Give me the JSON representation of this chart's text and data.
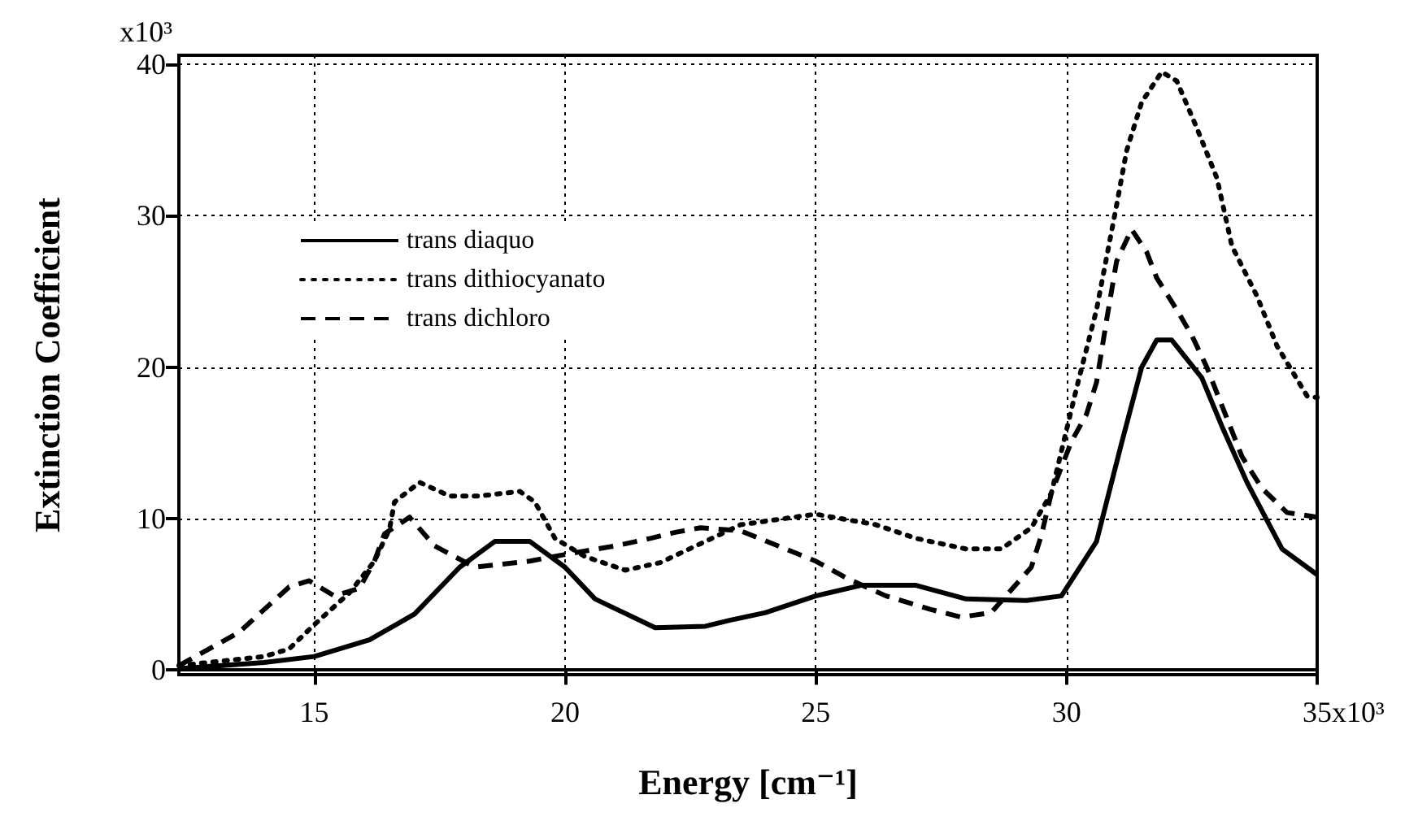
{
  "chart_data": {
    "type": "line",
    "xlabel": "Energy [cm⁻¹]",
    "ylabel": "Extinction Coefficient",
    "xlim": [
      12.3,
      35
    ],
    "ylim": [
      -0.3,
      40.6
    ],
    "xticks": [
      15,
      20,
      25,
      30,
      35
    ],
    "yticks": [
      0,
      10,
      20,
      30,
      40
    ],
    "annotations": [
      "x10³",
      "x10³"
    ],
    "grid": true,
    "legend": "top left",
    "marker": "none",
    "series": [
      {
        "name": "trans diaquo",
        "color": "#000000",
        "line_style": "solid",
        "x": [
          12.3,
          14,
          15,
          16.1,
          17,
          17.9,
          18.6,
          19.3,
          20,
          20.6,
          21.8,
          22.8,
          23.3,
          24,
          25,
          25.9,
          27,
          28,
          29.2,
          29.9,
          30.6,
          31.1,
          31.5,
          31.8,
          32.1,
          32.7,
          33.1,
          33.6,
          34.3,
          35
        ],
        "values": [
          0.1,
          0.5,
          0.9,
          2.0,
          3.7,
          6.8,
          8.5,
          8.5,
          6.8,
          4.7,
          2.8,
          2.9,
          3.3,
          3.8,
          4.9,
          5.6,
          5.6,
          4.7,
          4.6,
          4.9,
          8.5,
          15,
          20,
          21.8,
          21.8,
          19.3,
          16.1,
          12.4,
          8,
          6.3
        ]
      },
      {
        "name": "trans dithiocyanato",
        "color": "#000000",
        "line_style": "dotted",
        "x": [
          12.3,
          14,
          14.5,
          15,
          15.7,
          16.2,
          16.5,
          16.6,
          17.1,
          17.7,
          18.3,
          19.1,
          19.4,
          19.8,
          20.4,
          21.2,
          21.9,
          22.8,
          23.5,
          25,
          26.2,
          27,
          28,
          28.7,
          29.3,
          29.7,
          30.2,
          30.6,
          31,
          31.2,
          31.5,
          31.9,
          32.2,
          32.6,
          33,
          33.3,
          33.8,
          34.2,
          34.8,
          35
        ],
        "values": [
          0.3,
          0.9,
          1.4,
          3.0,
          5.1,
          7.2,
          9.3,
          11.1,
          12.4,
          11.5,
          11.5,
          11.8,
          11.1,
          8.7,
          7.5,
          6.6,
          7.1,
          8.5,
          9.6,
          10.3,
          9.6,
          8.7,
          8.0,
          8.0,
          9.4,
          11.7,
          18.6,
          23.8,
          30.7,
          34.3,
          37.5,
          39.5,
          38.9,
          35.8,
          32.5,
          28,
          24.7,
          21.4,
          18.1,
          18
        ]
      },
      {
        "name": "trans dichloro",
        "color": "#000000",
        "line_style": "dashed",
        "x": [
          12.3,
          13.5,
          14,
          14.5,
          14.9,
          15.4,
          15.9,
          16.2,
          16.4,
          16.9,
          17.4,
          18.2,
          19.3,
          20.1,
          21,
          21.7,
          22.2,
          22.7,
          23.5,
          24.4,
          25,
          25.6,
          26.4,
          27.3,
          27.9,
          28.5,
          29.3,
          29.5,
          29.7,
          30.1,
          30.4,
          30.6,
          30.8,
          31,
          31.3,
          31.6,
          31.8,
          32.2,
          32.5,
          32.8,
          33.5,
          33.9,
          34.4,
          35
        ],
        "values": [
          0.3,
          2.5,
          4.0,
          5.5,
          5.9,
          4.9,
          5.4,
          7.2,
          9,
          10.1,
          8.2,
          6.8,
          7.2,
          7.7,
          8.2,
          8.7,
          9.1,
          9.4,
          9.2,
          8.0,
          7.2,
          6.1,
          4.9,
          4.0,
          3.5,
          3.8,
          6.8,
          8.9,
          11.7,
          15.1,
          16.9,
          19,
          23.1,
          27,
          29.1,
          27.6,
          25.9,
          23.8,
          22.1,
          20,
          14.1,
          12,
          10.4,
          10.1
        ]
      }
    ]
  }
}
